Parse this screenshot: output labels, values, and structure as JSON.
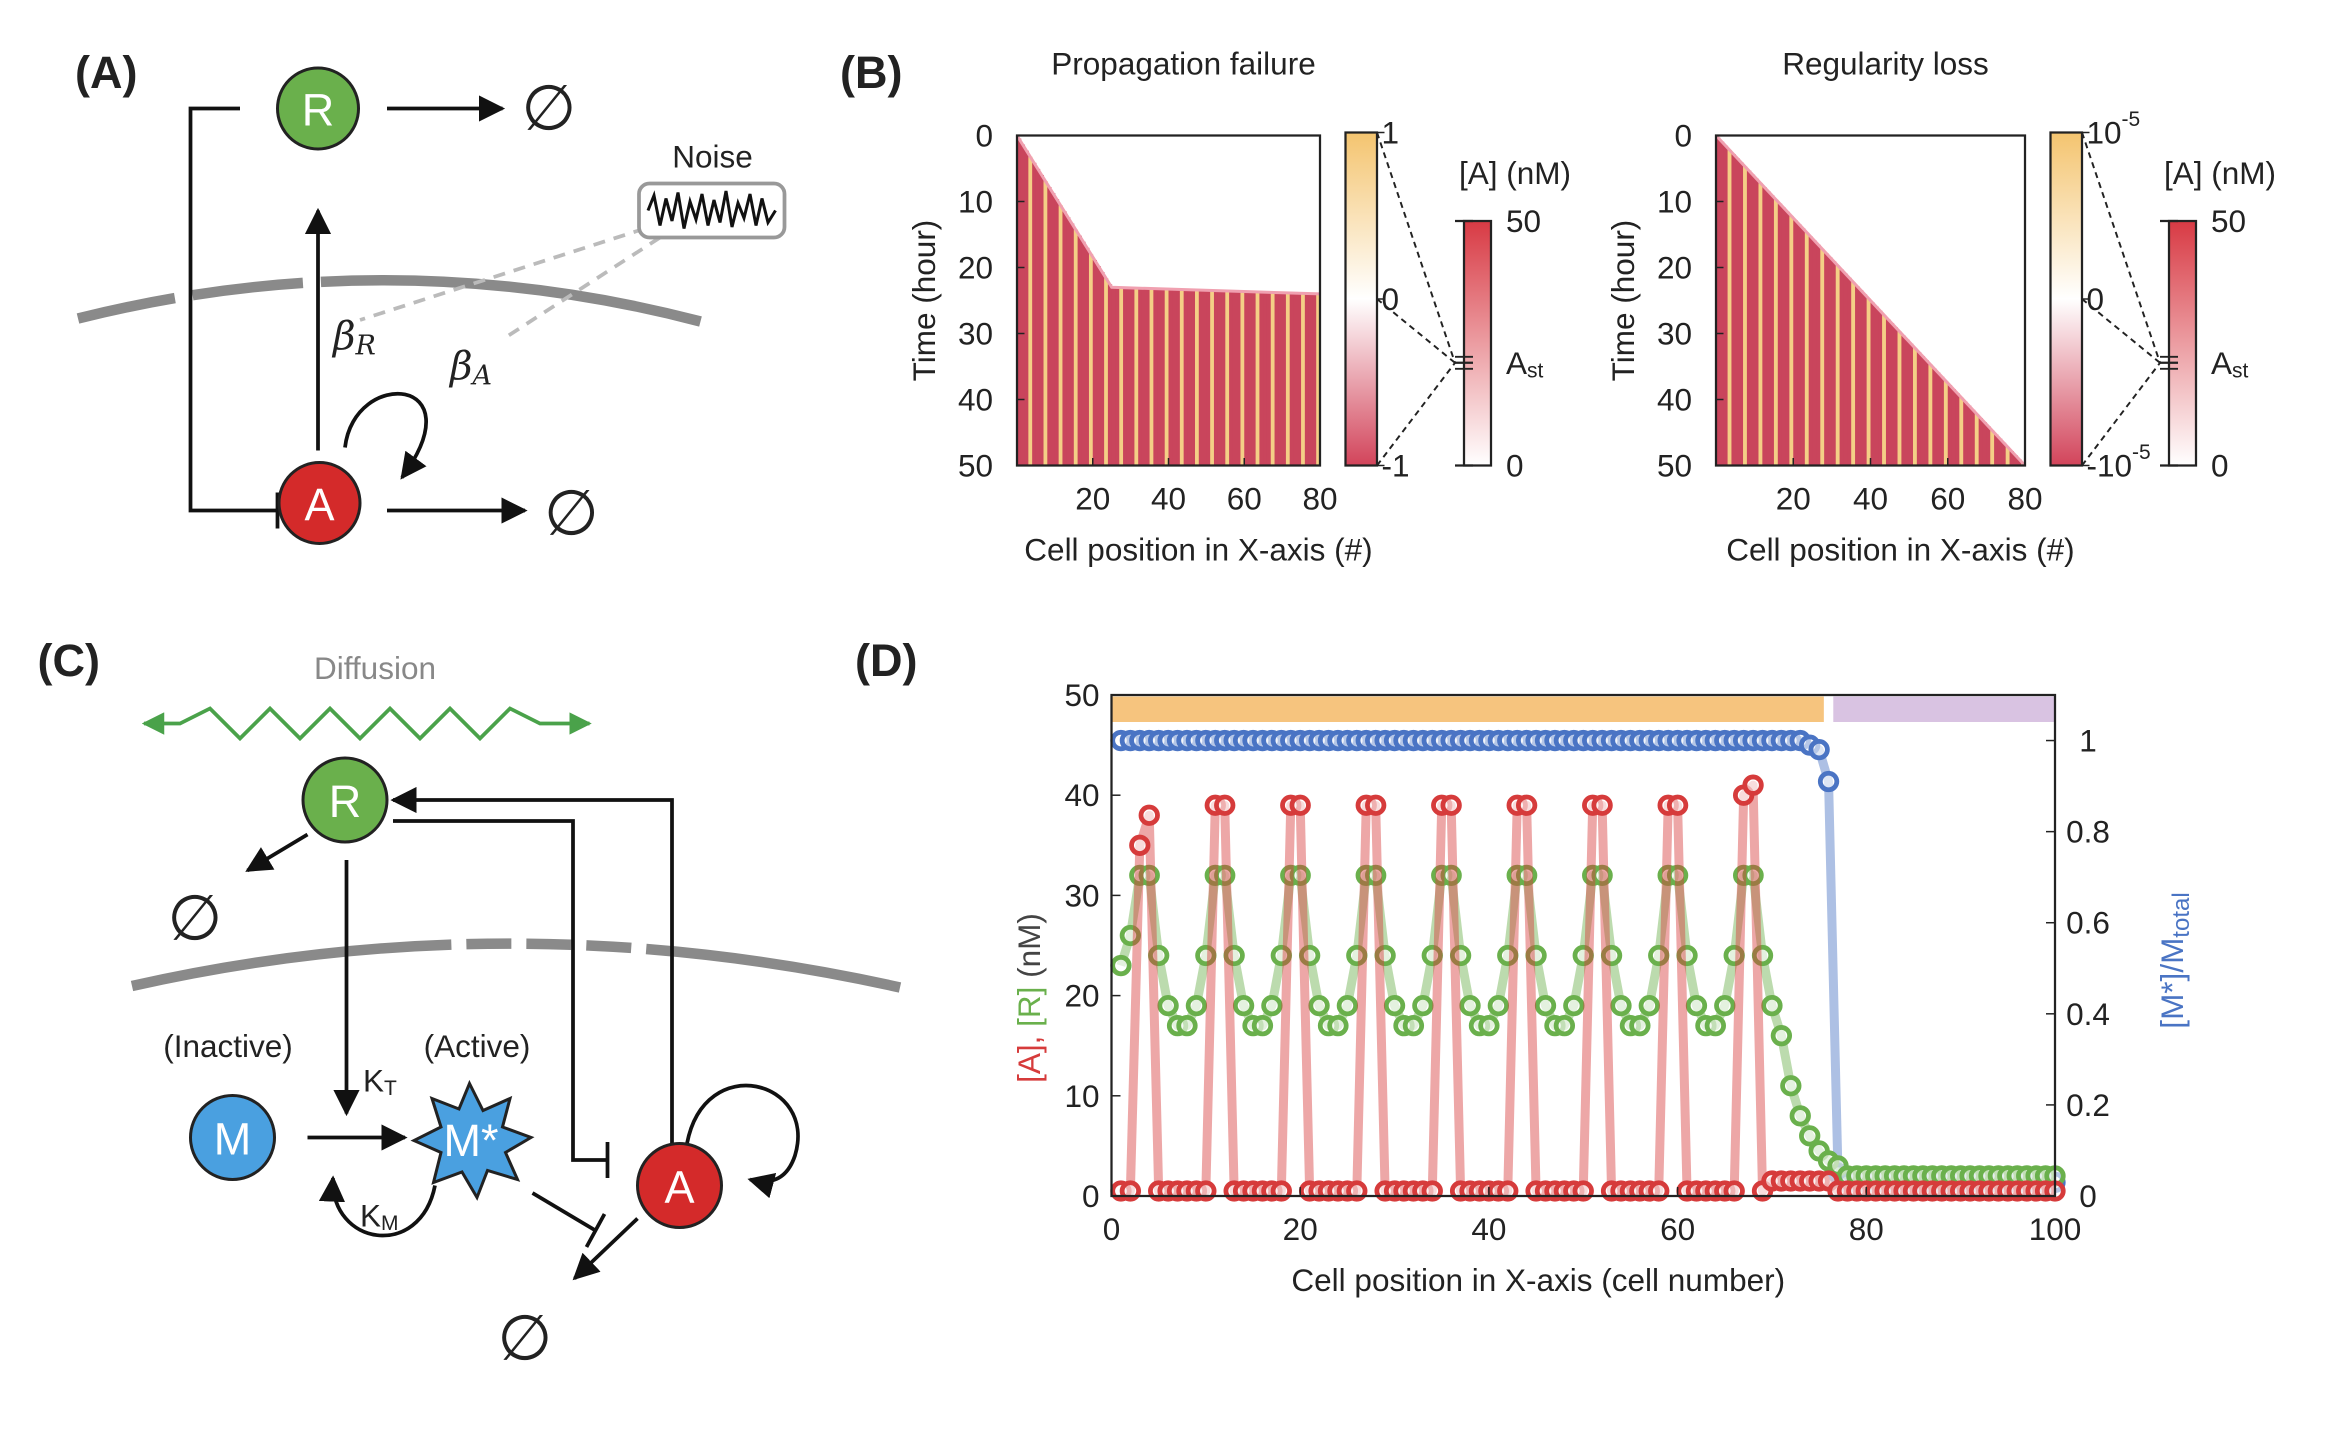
{
  "panels": {
    "a": {
      "label": "(A)",
      "noise": "Noise",
      "nodes": [
        {
          "label": "R"
        },
        {
          "label": "A"
        }
      ],
      "sinks": [
        "∅",
        "∅"
      ],
      "rates": [
        {
          "symbol": "β",
          "sub": "R"
        },
        {
          "symbol": "β",
          "sub": "A"
        }
      ]
    },
    "b": {
      "label": "(B)"
    },
    "c": {
      "label": "(C)",
      "diffusion": "Diffusion",
      "nodes": [
        {
          "label": "R"
        },
        {
          "label": "M"
        },
        {
          "label": "M*"
        },
        {
          "label": "A"
        }
      ],
      "states": [
        "(Inactive)",
        "(Active)"
      ],
      "rates": [
        {
          "symbol": "K",
          "sub": "T"
        },
        {
          "symbol": "K",
          "sub": "M"
        }
      ],
      "sinks": [
        "∅",
        "∅"
      ]
    },
    "d": {
      "label": "(D)"
    }
  },
  "chart_data": [
    {
      "type": "heatmap",
      "title": "Propagation failure",
      "xlabel": "Cell position in X-axis (#)",
      "ylabel": "Time (hour)",
      "xlim": [
        0,
        80
      ],
      "xticks": [
        20,
        40,
        60,
        80
      ],
      "ylim": [
        0,
        50
      ],
      "yticks": [
        0,
        10,
        20,
        30,
        40,
        50
      ],
      "front": {
        "x": [
          0,
          25,
          80
        ],
        "y": [
          0,
          23,
          24
        ]
      },
      "colorbar": {
        "lim": [
          -1,
          1
        ],
        "ticks": [
          1,
          0,
          -1
        ]
      },
      "scale_bar": {
        "label": "[A] (nM)",
        "lim": [
          0,
          50
        ],
        "ticks": [
          50,
          {
            "value": 21,
            "label": "A",
            "sub": "st"
          },
          0
        ]
      }
    },
    {
      "type": "heatmap",
      "title": "Regularity loss",
      "xlabel": "Cell position in X-axis (#)",
      "ylabel": "Time (hour)",
      "xlim": [
        0,
        80
      ],
      "xticks": [
        20,
        40,
        60,
        80
      ],
      "ylim": [
        0,
        50
      ],
      "yticks": [
        0,
        10,
        20,
        30,
        40,
        50
      ],
      "front": {
        "x": [
          0,
          80
        ],
        "y": [
          0,
          50
        ]
      },
      "colorbar": {
        "lim": [
          -1e-05,
          1e-05
        ],
        "ticks": [
          {
            "value": 1e-05,
            "label": "10",
            "sup": "-5"
          },
          0,
          {
            "value": -1e-05,
            "label": "-10",
            "sup": "-5"
          }
        ]
      },
      "scale_bar": {
        "label": "[A] (nM)",
        "lim": [
          0,
          50
        ],
        "ticks": [
          50,
          {
            "value": 21,
            "label": "A",
            "sub": "st"
          },
          0
        ]
      }
    },
    {
      "type": "line",
      "xlabel": "Cell position in X-axis (cell number)",
      "ylabel": [
        {
          "text": "[A],",
          "color": "#d63b3b"
        },
        {
          "text": " [R]",
          "color": "#6ab04c"
        },
        {
          "text": " (nM)",
          "color": "#444444"
        }
      ],
      "y2label": {
        "text": "[M*]/M",
        "sub": "total",
        "color": "#4a74c4"
      },
      "xlim": [
        0,
        100
      ],
      "xticks": [
        0,
        20,
        40,
        60,
        80,
        100
      ],
      "ylim": [
        0,
        50
      ],
      "yticks": [
        0,
        10,
        20,
        30,
        40,
        50
      ],
      "y2lim": [
        0,
        1.1
      ],
      "y2ticks": [
        0,
        0.2,
        0.4,
        0.6,
        0.8,
        1
      ],
      "bands": [
        {
          "color": "#f6c47e",
          "start": 0,
          "end": 75.5
        },
        {
          "color": "#d9c3e2",
          "start": 76.5,
          "end": 100
        }
      ],
      "x": [
        1,
        2,
        3,
        4,
        5,
        6,
        7,
        8,
        9,
        10,
        11,
        12,
        13,
        14,
        15,
        16,
        17,
        18,
        19,
        20,
        21,
        22,
        23,
        24,
        25,
        26,
        27,
        28,
        29,
        30,
        31,
        32,
        33,
        34,
        35,
        36,
        37,
        38,
        39,
        40,
        41,
        42,
        43,
        44,
        45,
        46,
        47,
        48,
        49,
        50,
        51,
        52,
        53,
        54,
        55,
        56,
        57,
        58,
        59,
        60,
        61,
        62,
        63,
        64,
        65,
        66,
        67,
        68,
        69,
        70,
        71,
        72,
        73,
        74,
        75,
        76,
        77,
        78,
        79,
        80,
        81,
        82,
        83,
        84,
        85,
        86,
        87,
        88,
        89,
        90,
        91,
        92,
        93,
        94,
        95,
        96,
        97,
        98,
        99,
        100
      ],
      "series": [
        {
          "name": "M*",
          "color": "#4a74c4",
          "axis": "y2",
          "values": [
            1,
            1,
            1,
            1,
            1,
            1,
            1,
            1,
            1,
            1,
            1,
            1,
            1,
            1,
            1,
            1,
            1,
            1,
            1,
            1,
            1,
            1,
            1,
            1,
            1,
            1,
            1,
            1,
            1,
            1,
            1,
            1,
            1,
            1,
            1,
            1,
            1,
            1,
            1,
            1,
            1,
            1,
            1,
            1,
            1,
            1,
            1,
            1,
            1,
            1,
            1,
            1,
            1,
            1,
            1,
            1,
            1,
            1,
            1,
            1,
            1,
            1,
            1,
            1,
            1,
            1,
            1,
            1,
            1,
            1,
            1,
            1,
            1,
            0.99,
            0.98,
            0.91,
            0.05,
            0.03,
            0.03,
            0.03,
            0.03,
            0.03,
            0.03,
            0.03,
            0.03,
            0.03,
            0.03,
            0.03,
            0.03,
            0.03,
            0.03,
            0.03,
            0.03,
            0.03,
            0.03,
            0.03,
            0.03,
            0.03,
            0.03,
            0.03
          ]
        },
        {
          "name": "R",
          "color": "#6ab04c",
          "values": [
            23,
            26,
            32,
            32,
            24,
            19,
            17,
            17,
            19,
            24,
            32,
            32,
            24,
            19,
            17,
            17,
            19,
            24,
            32,
            32,
            24,
            19,
            17,
            17,
            19,
            24,
            32,
            32,
            24,
            19,
            17,
            17,
            19,
            24,
            32,
            32,
            24,
            19,
            17,
            17,
            19,
            24,
            32,
            32,
            24,
            19,
            17,
            17,
            19,
            24,
            32,
            32,
            24,
            19,
            17,
            17,
            19,
            24,
            32,
            32,
            24,
            19,
            17,
            17,
            19,
            24,
            32,
            32,
            24,
            19,
            16,
            11,
            8,
            6,
            4.5,
            3.5,
            3,
            2,
            2,
            2,
            2,
            2,
            2,
            2,
            2,
            2,
            2,
            2,
            2,
            2,
            2,
            2,
            2,
            2,
            2,
            2,
            2,
            2,
            2,
            2
          ]
        },
        {
          "name": "A",
          "color": "#d63b3b",
          "values": [
            0.5,
            0.5,
            35,
            38,
            0.5,
            0.5,
            0.5,
            0.5,
            0.5,
            0.5,
            39,
            39,
            0.5,
            0.5,
            0.5,
            0.5,
            0.5,
            0.5,
            39,
            39,
            0.5,
            0.5,
            0.5,
            0.5,
            0.5,
            0.5,
            39,
            39,
            0.5,
            0.5,
            0.5,
            0.5,
            0.5,
            0.5,
            39,
            39,
            0.5,
            0.5,
            0.5,
            0.5,
            0.5,
            0.5,
            39,
            39,
            0.5,
            0.5,
            0.5,
            0.5,
            0.5,
            0.5,
            39,
            39,
            0.5,
            0.5,
            0.5,
            0.5,
            0.5,
            0.5,
            39,
            39,
            0.5,
            0.5,
            0.5,
            0.5,
            0.5,
            0.5,
            40,
            41,
            0.5,
            1.5,
            1.5,
            1.5,
            1.5,
            1.5,
            1.5,
            1.5,
            0.5,
            0.5,
            0.5,
            0.5,
            0.5,
            0.5,
            0.5,
            0.5,
            0.5,
            0.5,
            0.5,
            0.5,
            0.5,
            0.5,
            0.5,
            0.5,
            0.5,
            0.5,
            0.5,
            0.5,
            0.5,
            0.5,
            0.5,
            0.5
          ]
        }
      ]
    }
  ]
}
